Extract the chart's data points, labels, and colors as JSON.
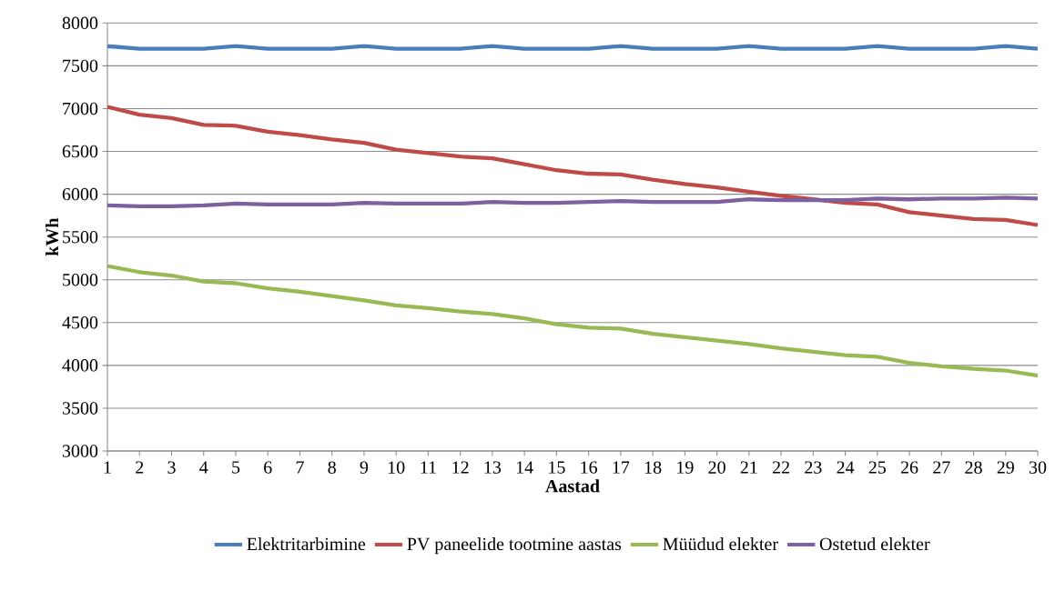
{
  "chart_data": {
    "type": "line",
    "xlabel": "Aastad",
    "ylabel": "kWh",
    "x": [
      1,
      2,
      3,
      4,
      5,
      6,
      7,
      8,
      9,
      10,
      11,
      12,
      13,
      14,
      15,
      16,
      17,
      18,
      19,
      20,
      21,
      22,
      23,
      24,
      25,
      26,
      27,
      28,
      29,
      30
    ],
    "xlim": [
      1,
      30
    ],
    "xticks": [
      1,
      2,
      3,
      4,
      5,
      6,
      7,
      8,
      9,
      10,
      11,
      12,
      13,
      14,
      15,
      16,
      17,
      18,
      19,
      20,
      21,
      22,
      23,
      24,
      25,
      26,
      27,
      28,
      29,
      30
    ],
    "ylim": [
      3000,
      8000
    ],
    "yticks": [
      3000,
      3500,
      4000,
      4500,
      5000,
      5500,
      6000,
      6500,
      7000,
      7500,
      8000
    ],
    "grid": "y",
    "legend": "bottom",
    "marker": "none",
    "line_style": "solid",
    "series": [
      {
        "name": "Elektritarbimine",
        "color": "#4a7ebb",
        "values": [
          7730,
          7700,
          7700,
          7700,
          7730,
          7700,
          7700,
          7700,
          7730,
          7700,
          7700,
          7700,
          7730,
          7700,
          7700,
          7700,
          7730,
          7700,
          7700,
          7700,
          7730,
          7700,
          7700,
          7700,
          7730,
          7700,
          7700,
          7700,
          7730,
          7700
        ]
      },
      {
        "name": "PV paneelide tootmine aastas",
        "color": "#be4b48",
        "values": [
          7020,
          6930,
          6890,
          6810,
          6800,
          6730,
          6690,
          6640,
          6600,
          6520,
          6480,
          6440,
          6420,
          6350,
          6280,
          6240,
          6230,
          6170,
          6120,
          6080,
          6030,
          5980,
          5940,
          5900,
          5880,
          5790,
          5750,
          5710,
          5700,
          5640
        ]
      },
      {
        "name": "Müüdud elekter",
        "color": "#98b954",
        "values": [
          5160,
          5090,
          5050,
          4980,
          4960,
          4900,
          4860,
          4810,
          4760,
          4700,
          4670,
          4630,
          4600,
          4550,
          4480,
          4440,
          4430,
          4370,
          4330,
          4290,
          4250,
          4200,
          4160,
          4120,
          4100,
          4030,
          3990,
          3960,
          3940,
          3880
        ]
      },
      {
        "name": "Ostetud elekter",
        "color": "#7d60a0",
        "values": [
          5870,
          5860,
          5860,
          5870,
          5890,
          5880,
          5880,
          5880,
          5900,
          5890,
          5890,
          5890,
          5910,
          5900,
          5900,
          5910,
          5920,
          5910,
          5910,
          5910,
          5940,
          5930,
          5930,
          5930,
          5950,
          5940,
          5950,
          5950,
          5960,
          5950
        ]
      }
    ]
  }
}
